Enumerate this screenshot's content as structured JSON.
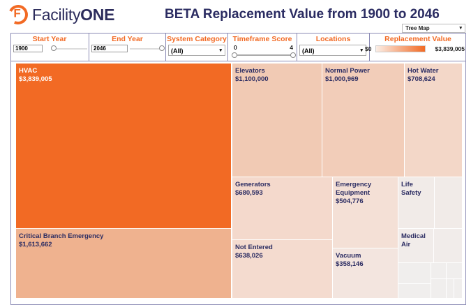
{
  "header": {
    "logo_text_light": "Facility",
    "logo_text_bold": "ONE",
    "logo_letter": "F",
    "title": "BETA Replacement Value from 1900 to 2046"
  },
  "view_selector": {
    "value": "Tree Map"
  },
  "filters": {
    "start_year": {
      "label": "Start Year",
      "value": "1900"
    },
    "end_year": {
      "label": "End Year",
      "value": "2046"
    },
    "system_category": {
      "label": "System Category",
      "value": "(All)"
    },
    "timeframe_score": {
      "label": "Timeframe Score",
      "min": "0",
      "max": "4"
    },
    "locations": {
      "label": "Locations",
      "value": "(All)"
    },
    "replacement_value": {
      "label": "Replacement Value",
      "min": "$0",
      "max": "$3,839,005"
    }
  },
  "treemap": {
    "cells": [
      {
        "name": "HVAC",
        "value": "$3,839,005",
        "color": "#f26a24"
      },
      {
        "name": "Critical Branch Emergency",
        "value": "$1,613,662",
        "color": "#efb28f"
      },
      {
        "name": "Elevators",
        "value": "$1,100,000",
        "color": "#f1cab4"
      },
      {
        "name": "Normal Power",
        "value": "$1,000,969",
        "color": "#f2cdb9"
      },
      {
        "name": "Hot Water",
        "value": "$708,624",
        "color": "#f3d7c8"
      },
      {
        "name": "Generators",
        "value": "$680,593",
        "color": "#f4d9cc"
      },
      {
        "name": "Not Entered",
        "value": "$638,026",
        "color": "#f4dbcf"
      },
      {
        "name": "Emergency Equipment",
        "value": "$504,776",
        "color": "#f4e0d6"
      },
      {
        "name": "Vacuum",
        "value": "$358,146",
        "color": "#f3e5df"
      },
      {
        "name": "Life Safety",
        "value": "",
        "color": "#f1ebe8"
      },
      {
        "name": "Medical Air",
        "value": "",
        "color": "#f1ecea"
      }
    ]
  }
}
